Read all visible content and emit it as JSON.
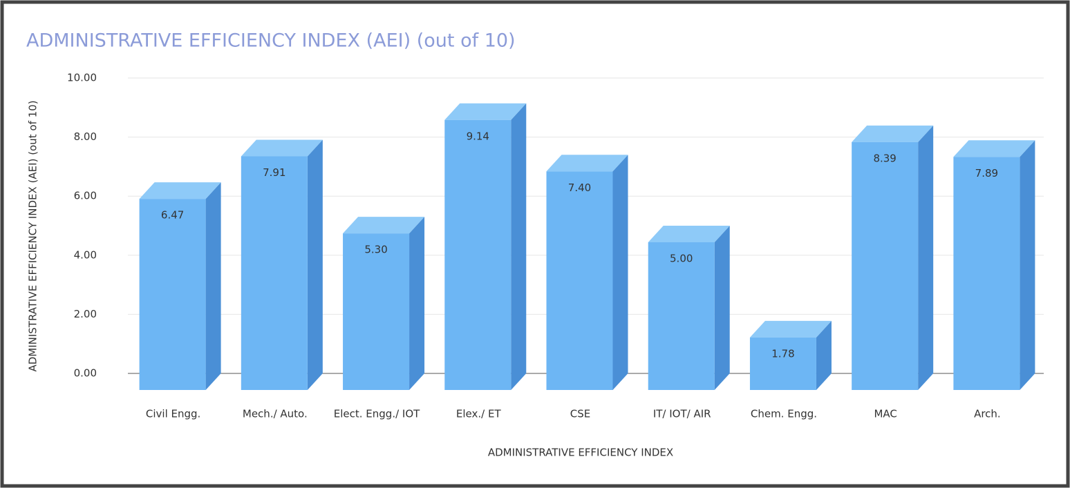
{
  "chart_data": {
    "type": "bar3d",
    "title": "ADMINISTRATIVE EFFICIENCY INDEX (AEI) (out of 10)",
    "x_label": "ADMINISTRATIVE EFFICIENCY INDEX",
    "y_label": "ADMINISTRATIVE EFFICIENCY INDEX (AEI) (out of 10)",
    "categories": [
      "Civil Engg.",
      "Mech./ Auto.",
      "Elect. Engg./ IOT",
      "Elex./ ET",
      "CSE",
      "IT/ IOT/ AIR",
      "Chem. Engg.",
      "MAC",
      "Arch."
    ],
    "values": [
      6.47,
      7.91,
      5.3,
      9.14,
      7.4,
      5.0,
      1.78,
      8.39,
      7.89
    ],
    "value_labels": [
      "6.47",
      "7.91",
      "5.30",
      "9.14",
      "7.40",
      "5.00",
      "1.78",
      "8.39",
      "7.89"
    ],
    "color": "#6db6f4",
    "ylim": [
      0,
      10
    ],
    "yticks": [
      {
        "value": 0,
        "label": "0.00"
      },
      {
        "value": 2,
        "label": "2.00"
      },
      {
        "value": 4,
        "label": "4.00"
      },
      {
        "value": 6,
        "label": "6.00"
      },
      {
        "value": 8,
        "label": "8.00"
      },
      {
        "value": 10,
        "label": "10.00"
      }
    ],
    "grid": true
  }
}
